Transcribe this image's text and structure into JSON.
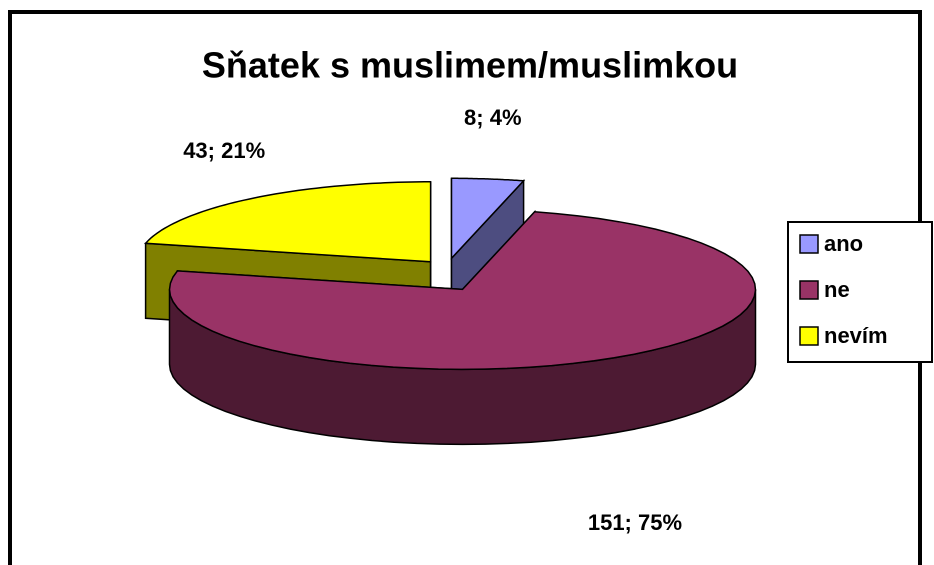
{
  "chart_data": {
    "type": "pie3d",
    "title": "Sňatek s muslimem/muslimkou",
    "categories": [
      "ano",
      "ne",
      "nevím"
    ],
    "values": [
      8,
      151,
      43
    ],
    "value_labels": [
      "8; 4%",
      "151; 75%",
      "43; 21%"
    ],
    "colors": [
      "#9999ff",
      "#993366",
      "#ffff00"
    ],
    "legend": "right"
  }
}
